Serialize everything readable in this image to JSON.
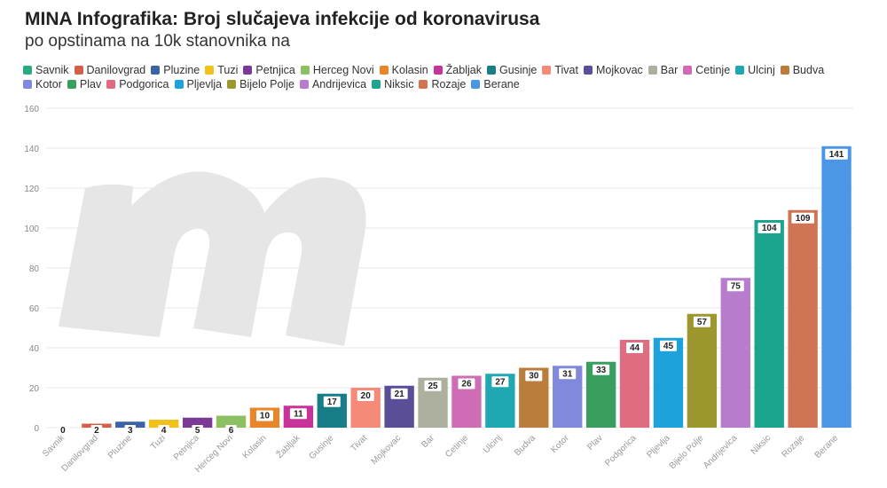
{
  "header": {
    "title": "MINA Infografika: Broj slučajeva infekcije od koronavirusa",
    "subtitle": "po opstinama na 10k stanovnika na"
  },
  "watermark_icon": "m-logo",
  "chart_data": {
    "type": "bar",
    "title": "MINA Infografika: Broj slučajeva infekcije od koronavirusa",
    "subtitle": "po opstinama na 10k stanovnika na",
    "xlabel": "",
    "ylabel": "",
    "ylim": [
      0,
      160
    ],
    "yticks": [
      0,
      20,
      40,
      60,
      80,
      100,
      120,
      140,
      160
    ],
    "grid": true,
    "legend_placement": "top",
    "categories": [
      "Savnik",
      "Danilovgrad",
      "Pluzine",
      "Tuzi",
      "Petnjica",
      "Herceg Novi",
      "Kolasin",
      "Žabljak",
      "Gusinje",
      "Tivat",
      "Mojkovac",
      "Bar",
      "Cetinje",
      "Ulcinj",
      "Budva",
      "Kotor",
      "Plav",
      "Podgorica",
      "Pljevlja",
      "Bijelo Polje",
      "Andrijevica",
      "Niksic",
      "Rozaje",
      "Berane"
    ],
    "values": [
      0,
      2,
      3,
      4,
      5,
      6,
      10,
      11,
      17,
      20,
      21,
      25,
      26,
      27,
      30,
      31,
      33,
      44,
      45,
      57,
      75,
      104,
      109,
      141
    ],
    "colors": [
      "#2eab7e",
      "#d4604a",
      "#3a63a8",
      "#f2c21b",
      "#7b3a96",
      "#8cc063",
      "#e8862a",
      "#c8339b",
      "#177e87",
      "#f58a79",
      "#5a4e99",
      "#aeb09f",
      "#d06bb6",
      "#20a8b2",
      "#ba7d3c",
      "#8189dc",
      "#3a9f5e",
      "#df6c80",
      "#1ea2db",
      "#9c982f",
      "#b77ccb",
      "#1ca58e",
      "#cf7555",
      "#4b97e6"
    ]
  }
}
